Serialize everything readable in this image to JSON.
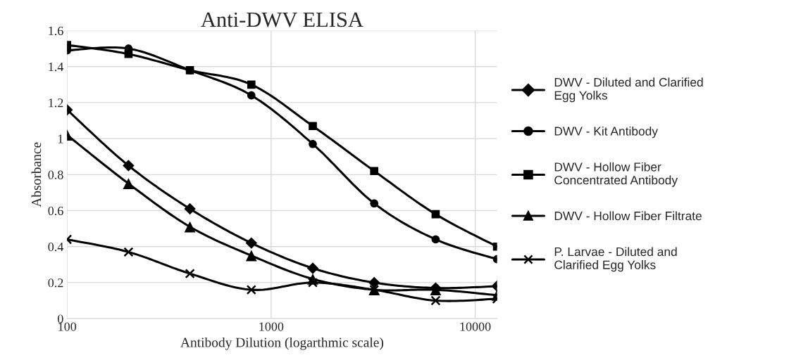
{
  "chart_data": {
    "type": "line",
    "title": "Anti-DWV ELISA",
    "xlabel": "Antibody Dilution (logarthmic scale)",
    "ylabel": "Absorbance",
    "log": "x",
    "grid": true,
    "legend": "right",
    "line_style": "solid",
    "x": [
      100,
      200,
      400,
      800,
      1600,
      3200,
      6400,
      12800
    ],
    "xlim": [
      100,
      12800
    ],
    "xticks": [
      100,
      1000,
      10000
    ],
    "ylim": [
      0,
      1.6
    ],
    "yticks": [
      0,
      0.2,
      0.4,
      0.6,
      0.8,
      1,
      1.2,
      1.4,
      1.6
    ],
    "series": [
      {
        "name": "DWV - Diluted and Clarified Egg Yolks",
        "color": "#000000",
        "marker": "diamond",
        "values": [
          1.16,
          0.85,
          0.61,
          0.42,
          0.28,
          0.2,
          0.17,
          0.18
        ]
      },
      {
        "name": "DWV - Kit Antibody",
        "color": "#000000",
        "marker": "circle",
        "values": [
          1.49,
          1.5,
          1.38,
          1.24,
          0.97,
          0.64,
          0.44,
          0.33
        ]
      },
      {
        "name": "DWV - Hollow Fiber Concentrated Antibody",
        "color": "#000000",
        "marker": "square",
        "values": [
          1.52,
          1.47,
          1.38,
          1.3,
          1.07,
          0.82,
          0.58,
          0.4
        ]
      },
      {
        "name": "DWV - Hollow Fiber Filtrate",
        "color": "#000000",
        "marker": "triangle",
        "values": [
          1.02,
          0.75,
          0.51,
          0.35,
          0.22,
          0.16,
          0.16,
          0.13
        ]
      },
      {
        "name": "P. Larvae - Diluted and Clarified Egg Yolks",
        "color": "#000000",
        "marker": "cross",
        "values": [
          0.44,
          0.37,
          0.25,
          0.16,
          0.2,
          0.16,
          0.1,
          0.11
        ]
      }
    ]
  }
}
